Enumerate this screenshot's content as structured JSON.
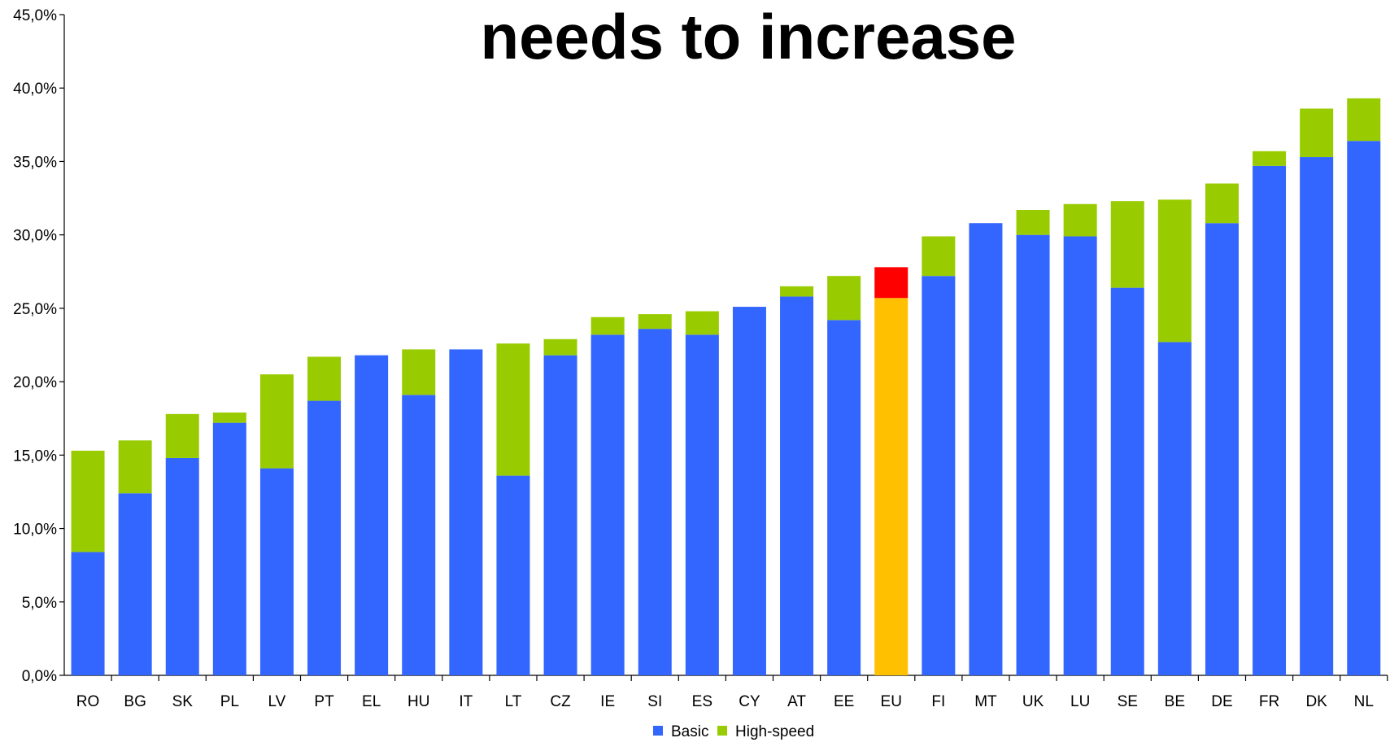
{
  "chart_data": {
    "type": "bar",
    "stacked": true,
    "title": "needs to increase",
    "xlabel": "",
    "ylabel": "",
    "ylim": [
      0,
      45
    ],
    "y_tick_step": 5,
    "y_tick_format": "percent_comma_1dp",
    "grid": false,
    "legend_position": "bottom",
    "categories": [
      "RO",
      "BG",
      "SK",
      "PL",
      "LV",
      "PT",
      "EL",
      "HU",
      "IT",
      "LT",
      "CZ",
      "IE",
      "SI",
      "ES",
      "CY",
      "AT",
      "EE",
      "EU",
      "FI",
      "MT",
      "UK",
      "LU",
      "SE",
      "BE",
      "DE",
      "FR",
      "DK",
      "NL"
    ],
    "series": [
      {
        "name": "Basic",
        "color": "#3366FF",
        "values": [
          8.4,
          12.4,
          14.8,
          17.2,
          14.1,
          18.7,
          21.8,
          19.1,
          22.2,
          13.6,
          21.8,
          23.2,
          23.6,
          23.2,
          25.1,
          25.8,
          24.2,
          25.7,
          27.2,
          30.8,
          30.0,
          29.9,
          26.4,
          22.7,
          30.8,
          34.7,
          35.3,
          36.4
        ]
      },
      {
        "name": "High-speed",
        "color": "#99CC00",
        "values": [
          6.9,
          3.6,
          3.0,
          0.7,
          6.4,
          3.0,
          0.0,
          3.1,
          0.0,
          9.0,
          1.1,
          1.2,
          1.0,
          1.6,
          0.0,
          0.7,
          3.0,
          2.1,
          2.7,
          0.0,
          1.7,
          2.2,
          5.9,
          9.7,
          2.7,
          1.0,
          3.3,
          2.9
        ]
      }
    ],
    "highlight": {
      "category": "EU",
      "colors": {
        "Basic": "#FFC000",
        "High-speed": "#FF0000"
      }
    }
  }
}
